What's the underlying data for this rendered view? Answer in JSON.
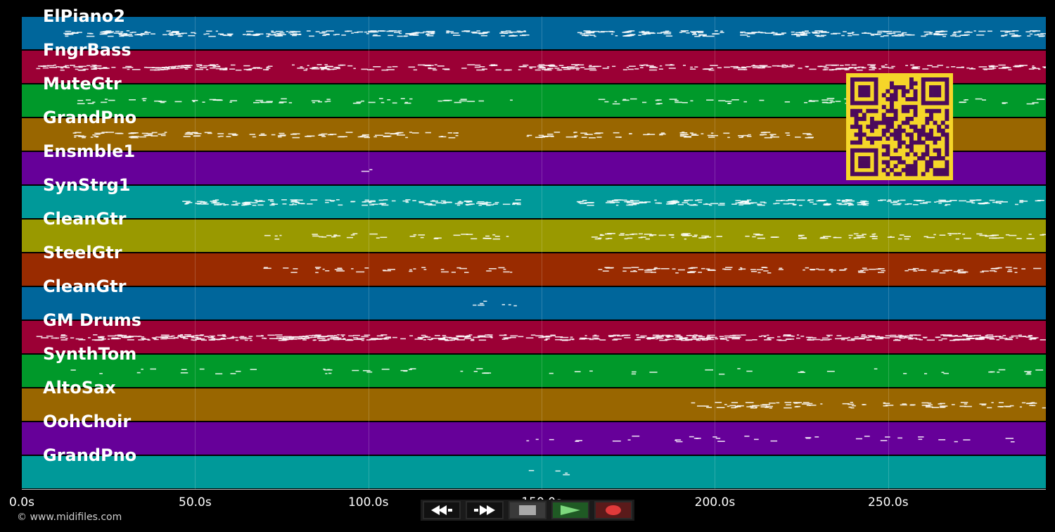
{
  "lanes": [
    {
      "name": "ElPiano2",
      "color": "#00669b"
    },
    {
      "name": "FngrBass",
      "color": "#9b0035"
    },
    {
      "name": "MuteGtr",
      "color": "#00992a"
    },
    {
      "name": "GrandPno",
      "color": "#996600"
    },
    {
      "name": "Ensmble1",
      "color": "#660099"
    },
    {
      "name": "SynStrg1",
      "color": "#009999"
    },
    {
      "name": "CleanGtr",
      "color": "#999900"
    },
    {
      "name": "SteelGtr",
      "color": "#992b00"
    },
    {
      "name": "CleanGtr",
      "color": "#00669b"
    },
    {
      "name": "GM Drums",
      "color": "#9b0035"
    },
    {
      "name": "SynthTom",
      "color": "#00992a"
    },
    {
      "name": "AltoSax",
      "color": "#996600"
    },
    {
      "name": "OohChoir",
      "color": "#660099"
    },
    {
      "name": "GrandPno",
      "color": "#009999"
    }
  ],
  "timeline": {
    "ticks": [
      "0.0s",
      "50.0s",
      "100.0s",
      "150.0s",
      "200.0s",
      "250.0s"
    ],
    "tick_seconds": [
      0,
      50,
      100,
      150,
      200,
      250
    ],
    "end_seconds": 295.5
  },
  "copyright": "© www.midifiles.com",
  "transport": [
    {
      "name": "rewind-button",
      "icon": "rewind-icon"
    },
    {
      "name": "fast-forward-button",
      "icon": "fast-forward-icon"
    },
    {
      "name": "stop-button",
      "icon": "stop-icon"
    },
    {
      "name": "play-button",
      "icon": "play-icon"
    },
    {
      "name": "record-button",
      "icon": "record-icon"
    }
  ],
  "qr_code": {
    "color": "#4b0a5c",
    "background": "#f5d629"
  }
}
